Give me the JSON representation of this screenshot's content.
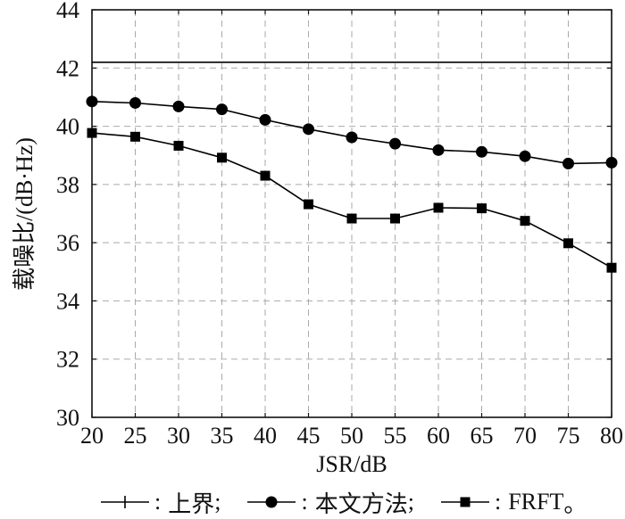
{
  "chart_data": {
    "type": "line",
    "xlabel": "JSR/dB",
    "ylabel": "载噪比/(dB·Hz)",
    "x": [
      20,
      25,
      30,
      35,
      40,
      45,
      50,
      55,
      60,
      65,
      70,
      75,
      80
    ],
    "xlim": [
      20,
      80
    ],
    "ylim": [
      30,
      44
    ],
    "xticks": [
      20,
      25,
      30,
      35,
      40,
      45,
      50,
      55,
      60,
      65,
      70,
      75,
      80
    ],
    "yticks": [
      30,
      32,
      34,
      36,
      38,
      40,
      42,
      44
    ],
    "grid": true,
    "grid_style": "dashed",
    "grid_color": "#aaaaaa",
    "legend": {
      "position": "bottom",
      "separator": ":",
      "endings": [
        ";",
        ";",
        "。"
      ]
    },
    "series": [
      {
        "name": "上界",
        "marker": "plus",
        "color": "#000000",
        "values": [
          42.2,
          42.2,
          42.2,
          42.2,
          42.2,
          42.2,
          42.2,
          42.2,
          42.2,
          42.2,
          42.2,
          42.2,
          42.2
        ]
      },
      {
        "name": "本文方法",
        "marker": "circle",
        "color": "#000000",
        "values": [
          40.85,
          40.8,
          40.68,
          40.58,
          40.22,
          39.9,
          39.62,
          39.4,
          39.18,
          39.12,
          38.97,
          38.72,
          38.75
        ]
      },
      {
        "name": "FRFT",
        "marker": "square",
        "color": "#000000",
        "values": [
          39.77,
          39.64,
          39.33,
          38.92,
          38.3,
          37.32,
          36.83,
          36.83,
          37.2,
          37.18,
          36.75,
          35.98,
          35.14
        ]
      }
    ]
  }
}
